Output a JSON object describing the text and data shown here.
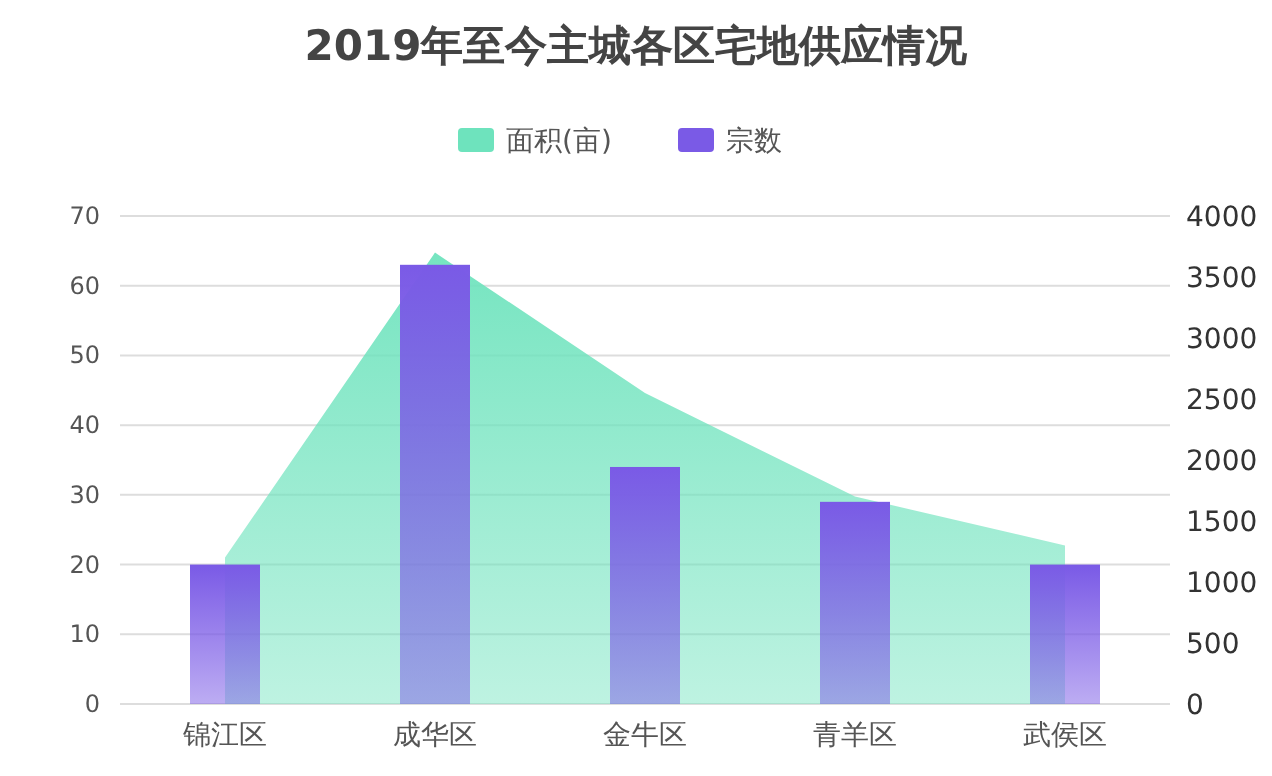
{
  "chart_data": {
    "type": "bar",
    "title": "2019年至今主城各区宅地供应情况",
    "categories": [
      "锦江区",
      "成华区",
      "金牛区",
      "青羊区",
      "武侯区"
    ],
    "series": [
      {
        "name": "面积(亩)",
        "type": "area",
        "axis": "y2",
        "color": "#6ee3bd",
        "values": [
          1200,
          3700,
          2550,
          1700,
          1300
        ]
      },
      {
        "name": "宗数",
        "axis": "y",
        "color": "#7a5ae6",
        "values": [
          20,
          63,
          34,
          29,
          20
        ]
      }
    ],
    "ylim": [
      0,
      70
    ],
    "yticks": [
      0,
      10,
      20,
      30,
      40,
      50,
      60,
      70
    ],
    "y2lim": [
      0,
      4000
    ],
    "y2ticks": [
      0,
      500,
      1000,
      1500,
      2000,
      2500,
      3000,
      3500,
      4000
    ],
    "grid": "y",
    "legend": "top"
  }
}
